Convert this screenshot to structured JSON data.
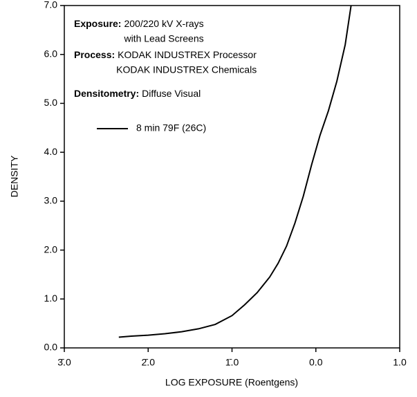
{
  "chart_data": {
    "type": "line",
    "xlabel": "LOG EXPOSURE (Roentgens)",
    "ylabel": "DENSITY",
    "annotations": [
      {
        "label": "Exposure:",
        "lines": [
          "200/220 kV X-rays",
          "with Lead Screens"
        ]
      },
      {
        "label": "Process:",
        "lines": [
          "KODAK INDUSTREX Processor",
          "KODAK INDUSTREX Chemicals"
        ]
      },
      {
        "label": "Densitometry:",
        "lines": [
          "Diffuse Visual"
        ]
      }
    ],
    "xlim": [
      -3,
      1
    ],
    "ylim": [
      0,
      7
    ],
    "xticks": [
      {
        "value": -3,
        "label": "3̄.0"
      },
      {
        "value": -2,
        "label": "2̄.0"
      },
      {
        "value": -1,
        "label": "1̄.0"
      },
      {
        "value": 0,
        "label": "0.0"
      },
      {
        "value": 1,
        "label": "1.0"
      }
    ],
    "yticks": [
      {
        "value": 0,
        "label": "0.0"
      },
      {
        "value": 1,
        "label": "1.0"
      },
      {
        "value": 2,
        "label": "2.0"
      },
      {
        "value": 3,
        "label": "3.0"
      },
      {
        "value": 4,
        "label": "4.0"
      },
      {
        "value": 5,
        "label": "5.0"
      },
      {
        "value": 6,
        "label": "6.0"
      },
      {
        "value": 7,
        "label": "7.0"
      }
    ],
    "grid": false,
    "x": [
      -2.35,
      -2.2,
      -2.0,
      -1.8,
      -1.6,
      -1.4,
      -1.2,
      -1.0,
      -0.85,
      -0.7,
      -0.55,
      -0.45,
      -0.35,
      -0.25,
      -0.15,
      -0.05,
      0.05,
      0.15,
      0.25,
      0.35,
      0.42
    ],
    "series": [
      {
        "name": "8 min 79F (26C)",
        "color": "#000000",
        "values": [
          0.22,
          0.24,
          0.26,
          0.29,
          0.33,
          0.39,
          0.48,
          0.66,
          0.88,
          1.13,
          1.45,
          1.73,
          2.08,
          2.55,
          3.1,
          3.75,
          4.35,
          4.85,
          5.45,
          6.2,
          7.0
        ]
      }
    ]
  }
}
